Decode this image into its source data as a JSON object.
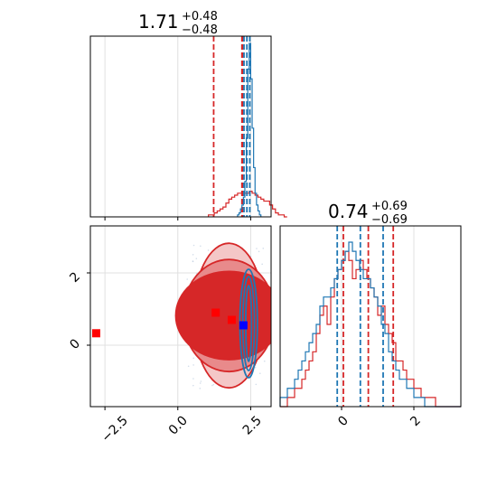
{
  "chart_data": [
    {
      "type": "histogram",
      "panel": "top-left",
      "title": {
        "value": "1.71",
        "upper": "+0.48",
        "lower": "−0.48"
      },
      "xlim": [
        -3.0,
        3.2
      ],
      "grid": true,
      "series": [
        {
          "color": "#d62728",
          "bins": {
            "start": 1.05,
            "width": 0.1,
            "counts": [
              1,
              1,
              2,
              3,
              4,
              5,
              7,
              9,
              10,
              11,
              12,
              12,
              12,
              12,
              13,
              12,
              11,
              10,
              9,
              8,
              8,
              6,
              4,
              2,
              1,
              1,
              0
            ]
          },
          "quantiles": [
            1.23,
            2.2,
            2.22
          ]
        },
        {
          "color": "#1f77b4",
          "bins": {
            "start": 2.05,
            "width": 0.05,
            "counts": [
              1,
              2,
              4,
              6,
              10,
              18,
              40,
              75,
              88,
              70,
              45,
              25,
              12,
              6,
              3,
              1
            ]
          },
          "quantiles": [
            2.27,
            2.37,
            2.47
          ]
        }
      ]
    },
    {
      "type": "contour",
      "panel": "bottom-left",
      "xlim": [
        -3.0,
        3.2
      ],
      "ylim": [
        -1.7,
        3.3
      ],
      "xticks": [
        "−2.5",
        "0.0",
        "2.5"
      ],
      "yticks": [
        "0",
        "2"
      ],
      "grid": true,
      "series": [
        {
          "color": "#d62728",
          "center": [
            1.75,
            0.82
          ],
          "levels": [
            [
              1.22,
              2.0
            ],
            [
              1.58,
              1.55
            ],
            [
              1.82,
              1.22
            ]
          ]
        },
        {
          "color": "#1f77b4",
          "center": [
            2.43,
            0.6
          ],
          "levels": [
            [
              0.1,
              1.05
            ],
            [
              0.2,
              1.3
            ],
            [
              0.3,
              1.5
            ]
          ]
        }
      ],
      "markers": [
        {
          "color": "#ff0000",
          "x": -2.8,
          "y": 0.33
        },
        {
          "color": "#ff0000",
          "x": 1.3,
          "y": 0.9
        },
        {
          "color": "#ff0000",
          "x": 1.85,
          "y": 0.7
        },
        {
          "color": "#0000ff",
          "x": 2.25,
          "y": 0.55
        }
      ]
    },
    {
      "type": "histogram",
      "panel": "bottom-right",
      "title": {
        "value": "0.74",
        "upper": "+0.69",
        "lower": "−0.69"
      },
      "xlim": [
        -1.7,
        3.3
      ],
      "xticks": [
        "0",
        "2"
      ],
      "grid": true,
      "series": [
        {
          "color": "#d62728",
          "bins": {
            "start": -1.7,
            "width": 0.1,
            "counts": [
              0,
              0,
              1,
              1,
              2,
              2,
              3,
              4,
              5,
              6,
              8,
              10,
              11,
              9,
              12,
              14,
              15,
              16,
              17,
              16,
              14,
              15,
              16,
              15,
              14,
              13,
              12,
              10,
              11,
              9,
              8,
              7,
              5,
              5,
              4,
              3,
              3,
              2,
              2,
              1,
              1,
              1,
              1,
              0,
              0,
              0,
              0,
              0,
              0,
              0
            ]
          },
          "quantiles": [
            0.05,
            0.74,
            1.43
          ]
        },
        {
          "color": "#1f77b4",
          "bins": {
            "start": -1.7,
            "width": 0.1,
            "counts": [
              1,
              1,
              2,
              2,
              3,
              4,
              5,
              6,
              7,
              8,
              9,
              11,
              12,
              12,
              13,
              14,
              15,
              16,
              17,
              18,
              17,
              16,
              15,
              14,
              14,
              13,
              12,
              11,
              9,
              8,
              6,
              5,
              4,
              3,
              3,
              2,
              2,
              1,
              1,
              1,
              0,
              0,
              0,
              0,
              0,
              0,
              0,
              0,
              0,
              0
            ]
          },
          "quantiles": [
            -0.12,
            0.52,
            1.15
          ]
        }
      ]
    }
  ]
}
